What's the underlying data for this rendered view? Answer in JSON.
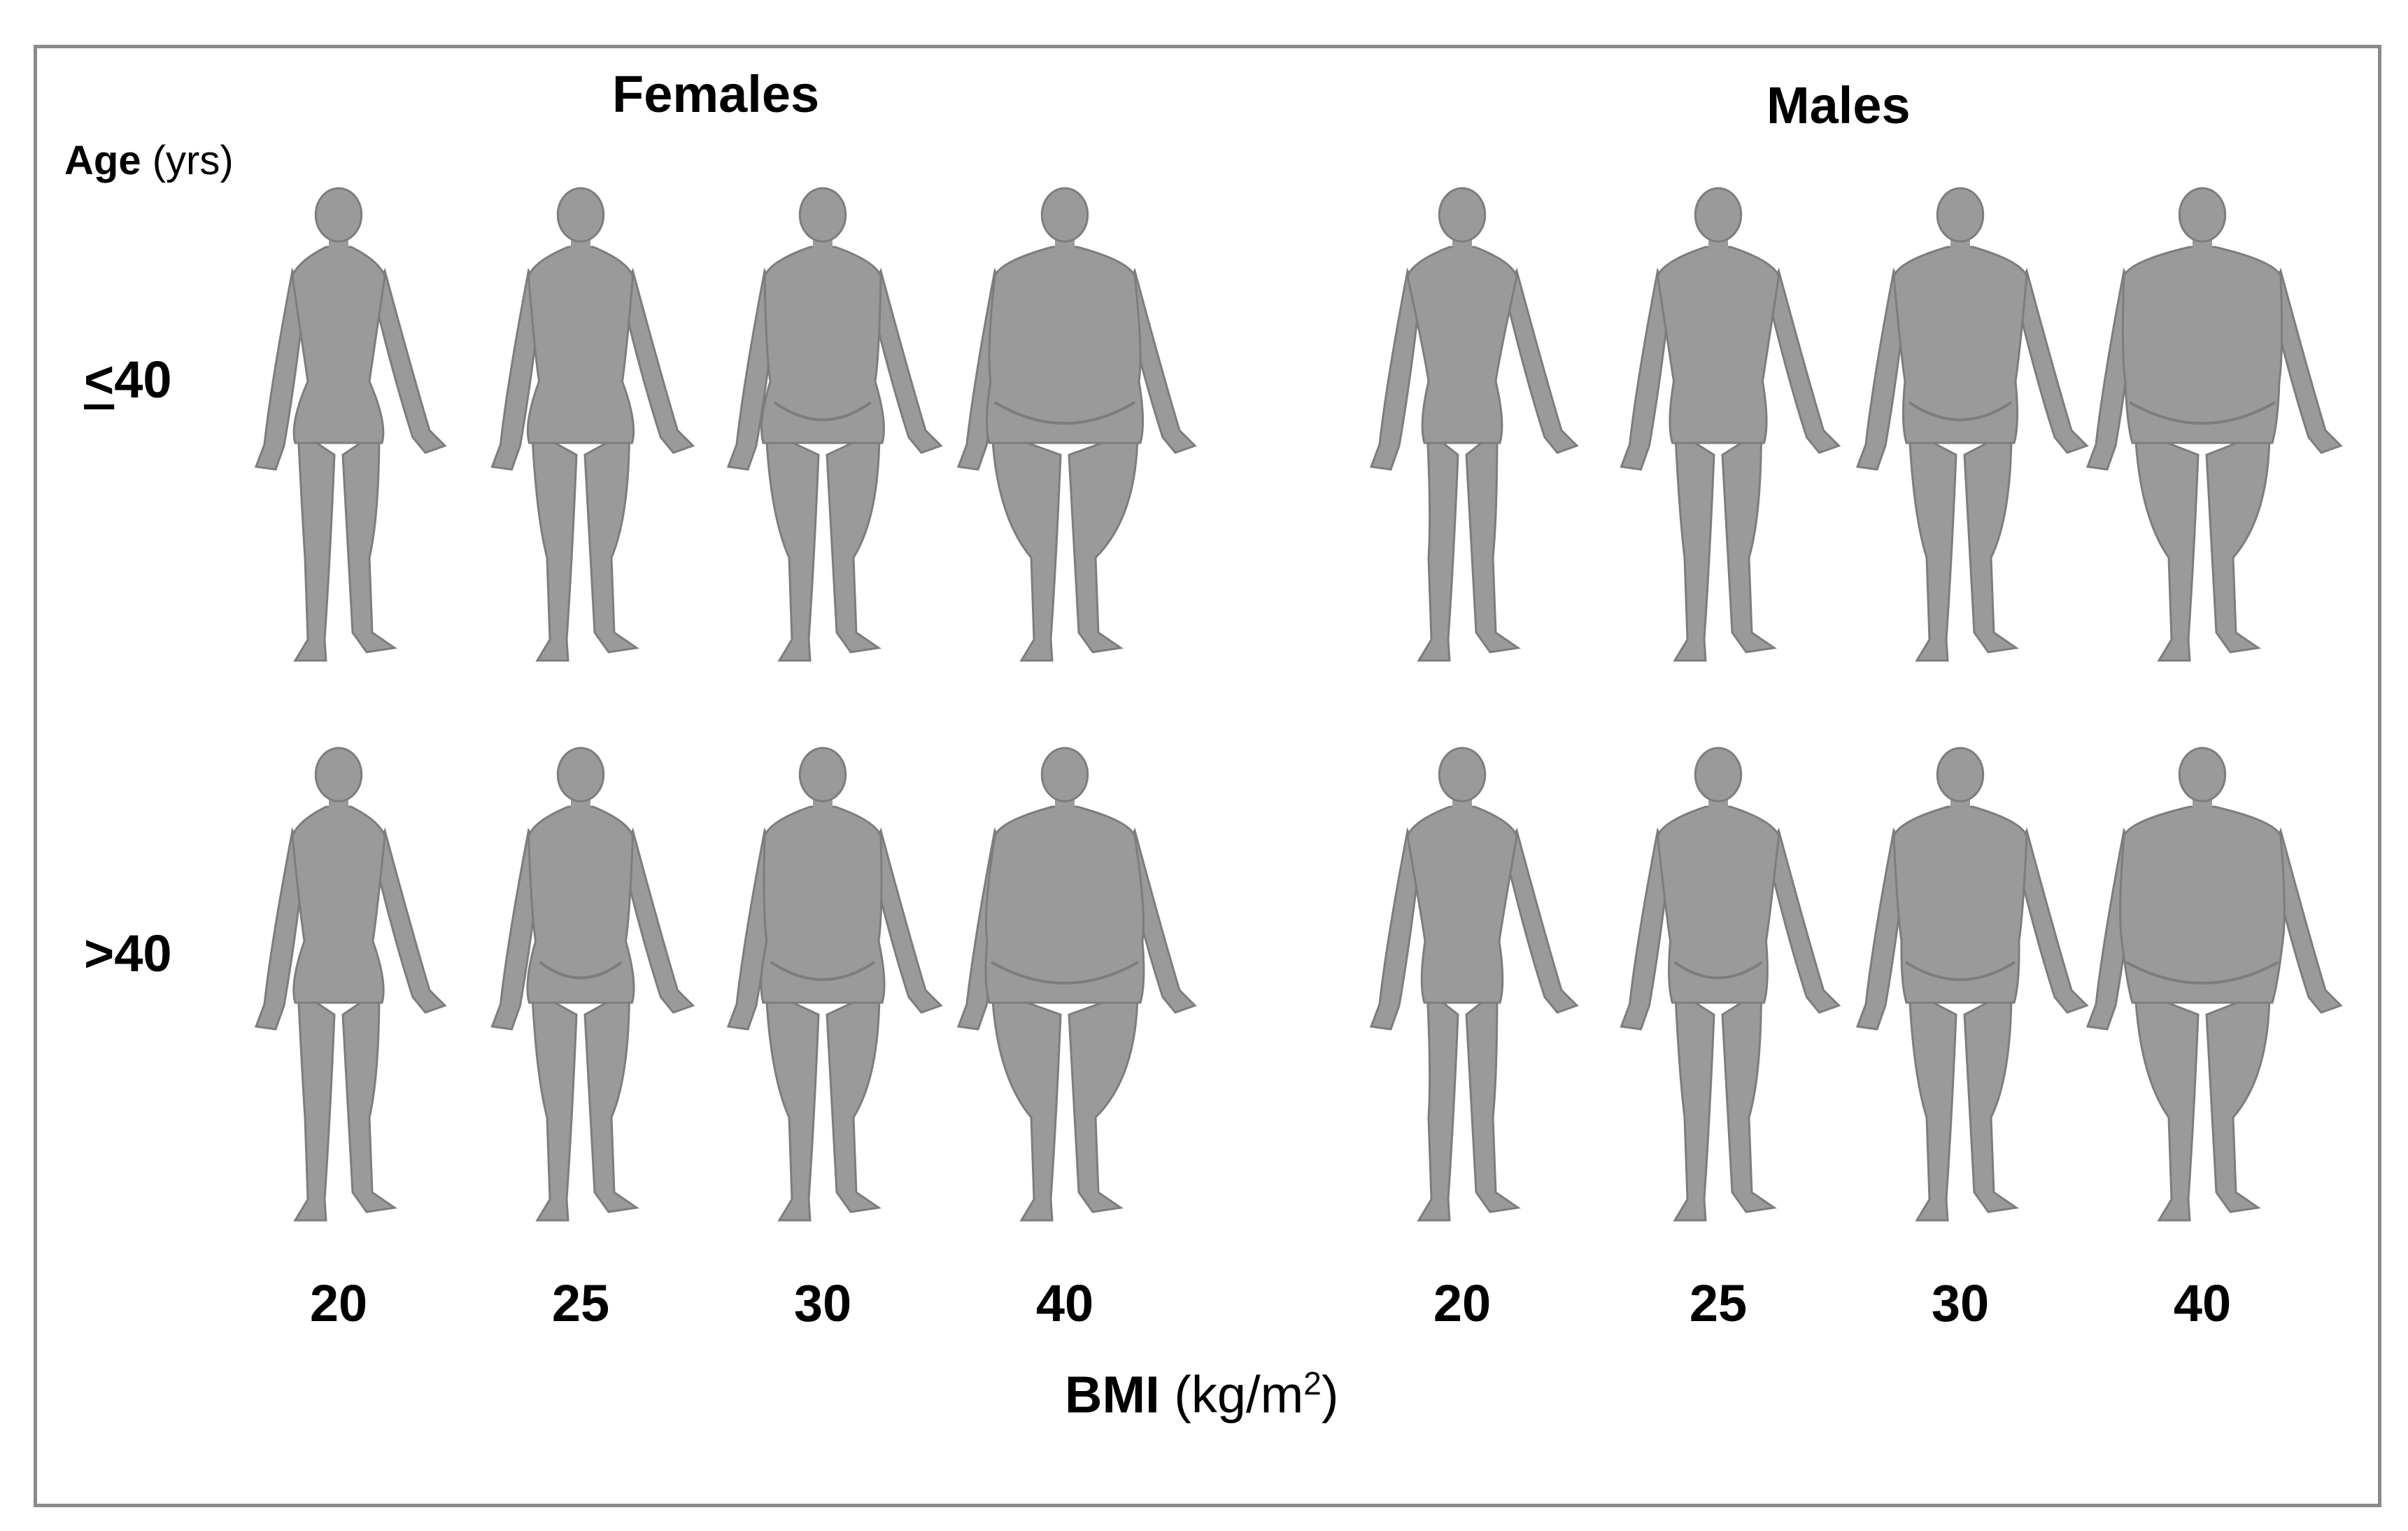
{
  "panels": {
    "females_title": "Females",
    "males_title": "Males"
  },
  "age_axis": {
    "label": "Age",
    "unit": "(yrs)",
    "rows": [
      {
        "label_prefix": "<",
        "label_value": "40",
        "underline_prefix": true
      },
      {
        "label_prefix": ">",
        "label_value": "40",
        "underline_prefix": false
      }
    ]
  },
  "bmi_axis": {
    "label": "BMI",
    "unit_open": "(kg/m",
    "unit_sup": "2",
    "unit_close": ")",
    "female_ticks": [
      "20",
      "25",
      "30",
      "40"
    ],
    "male_ticks": [
      "20",
      "25",
      "30",
      "40"
    ]
  },
  "figures": {
    "sex_order": [
      "female",
      "male"
    ],
    "bmi_values": [
      20,
      25,
      30,
      40
    ],
    "age_groups": [
      "<=40",
      ">40"
    ],
    "fill_color": "#9a9a9a",
    "shade_color": "#7d7d7d",
    "frame_color": "#8a8a8a"
  }
}
